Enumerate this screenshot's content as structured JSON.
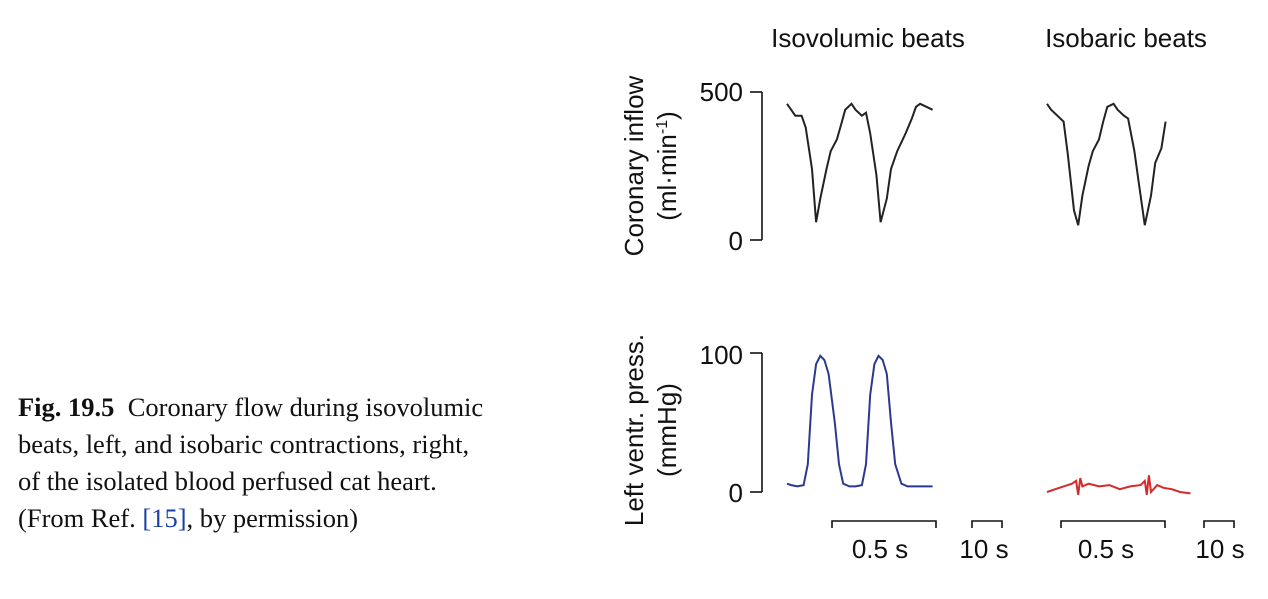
{
  "caption": {
    "label": "Fig. 19.5",
    "text_1": "Coronary flow during isovolumic beats, left, and isobaric contractions, right, of the isolated blood perfused cat heart. (From Ref. ",
    "ref": "[15]",
    "text_2": ", by permission)"
  },
  "panel_titles": {
    "left": "Isovolumic beats",
    "right": "Isobaric beats"
  },
  "chart_data": [
    {
      "type": "line",
      "ylabel": "Coronary inflow",
      "yunit_prefix": "(ml·min",
      "yunit_exp": "-1",
      "yunit_suffix": ")",
      "ylim": [
        0,
        500
      ],
      "yticks": [
        "500",
        "0"
      ],
      "grid": false,
      "series": [
        {
          "panel": "isovolumic",
          "color": "#222222",
          "x": [
            0,
            0.02,
            0.04,
            0.07,
            0.09,
            0.12,
            0.14,
            0.16,
            0.19,
            0.21,
            0.24,
            0.26,
            0.28,
            0.31,
            0.33,
            0.36,
            0.38,
            0.4,
            0.43,
            0.45,
            0.48,
            0.5,
            0.53,
            0.55,
            0.57,
            0.6,
            0.62,
            0.64,
            0.67,
            0.7
          ],
          "y": [
            460,
            440,
            420,
            420,
            380,
            240,
            60,
            140,
            240,
            300,
            340,
            390,
            440,
            460,
            440,
            420,
            430,
            360,
            220,
            60,
            140,
            240,
            300,
            330,
            360,
            410,
            450,
            460,
            450,
            440
          ]
        },
        {
          "panel": "isobaric",
          "color": "#222222",
          "x": [
            0,
            0.02,
            0.05,
            0.08,
            0.1,
            0.13,
            0.15,
            0.17,
            0.2,
            0.22,
            0.25,
            0.27,
            0.29,
            0.32,
            0.34,
            0.37,
            0.39,
            0.42,
            0.44,
            0.47,
            0.5,
            0.52,
            0.55,
            0.57
          ],
          "y": [
            460,
            440,
            420,
            400,
            290,
            100,
            50,
            150,
            250,
            300,
            340,
            400,
            450,
            460,
            440,
            420,
            410,
            300,
            200,
            50,
            150,
            260,
            310,
            400
          ]
        }
      ]
    },
    {
      "type": "line",
      "ylabel": "Left ventr. press.",
      "yunit": "(mmHg)",
      "ylim": [
        0,
        100
      ],
      "yticks": [
        "100",
        "0"
      ],
      "grid": false,
      "series": [
        {
          "panel": "isovolumic",
          "color": "#2b3a8f",
          "x": [
            0,
            0.02,
            0.05,
            0.08,
            0.1,
            0.12,
            0.14,
            0.16,
            0.18,
            0.2,
            0.23,
            0.25,
            0.27,
            0.3,
            0.33,
            0.36,
            0.38,
            0.4,
            0.42,
            0.44,
            0.46,
            0.48,
            0.5,
            0.52,
            0.55,
            0.58,
            0.61,
            0.64,
            0.67,
            0.7
          ],
          "y": [
            6,
            5,
            4,
            5,
            20,
            70,
            92,
            98,
            95,
            85,
            50,
            20,
            6,
            4,
            4,
            5,
            20,
            70,
            92,
            98,
            95,
            85,
            50,
            20,
            6,
            4,
            4,
            4,
            4,
            4
          ]
        },
        {
          "panel": "isobaric",
          "color": "#d62a2a",
          "x": [
            0,
            0.04,
            0.08,
            0.12,
            0.14,
            0.15,
            0.16,
            0.17,
            0.2,
            0.25,
            0.3,
            0.35,
            0.4,
            0.45,
            0.47,
            0.48,
            0.49,
            0.5,
            0.53,
            0.56,
            0.6,
            0.64,
            0.69
          ],
          "y": [
            0,
            2,
            4,
            6,
            8,
            -2,
            10,
            4,
            6,
            4,
            5,
            2,
            4,
            5,
            8,
            -2,
            12,
            0,
            5,
            3,
            2,
            0,
            -1
          ]
        }
      ]
    }
  ],
  "time_scales": [
    {
      "panel": "isovolumic",
      "label": "0.5 s",
      "seconds": 0.5
    },
    {
      "panel": "isovolumic",
      "label": "10 s",
      "seconds": 10
    },
    {
      "panel": "isobaric",
      "label": "0.5 s",
      "seconds": 0.5
    },
    {
      "panel": "isobaric",
      "label": "10 s",
      "seconds": 10
    }
  ]
}
